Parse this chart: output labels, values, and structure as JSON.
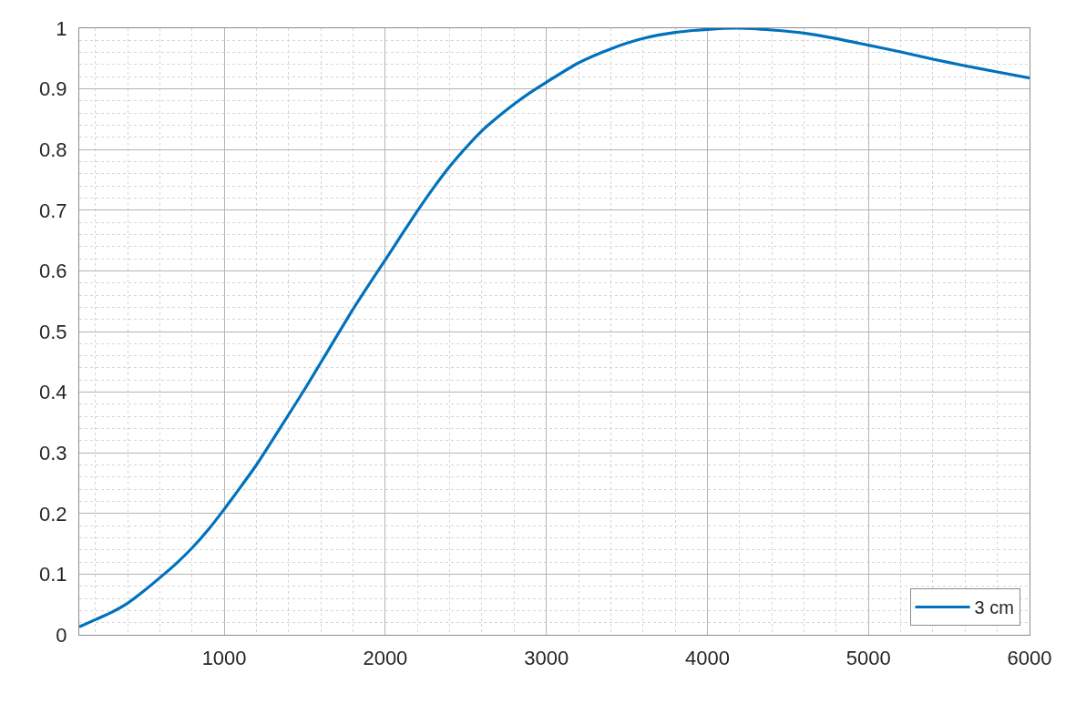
{
  "chart_data": {
    "type": "line",
    "x": [
      100,
      200,
      300,
      400,
      500,
      600,
      700,
      800,
      900,
      1000,
      1100,
      1200,
      1300,
      1400,
      1500,
      1600,
      1700,
      1800,
      1900,
      2000,
      2100,
      2200,
      2300,
      2400,
      2500,
      2600,
      2700,
      2800,
      2900,
      3000,
      3200,
      3400,
      3600,
      3800,
      4000,
      4200,
      4400,
      4600,
      4800,
      5000,
      5200,
      5400,
      5600,
      5800,
      6000
    ],
    "series": [
      {
        "name": "3 cm",
        "color": "#0072bd",
        "values": [
          0.013,
          0.025,
          0.037,
          0.052,
          0.072,
          0.094,
          0.117,
          0.143,
          0.173,
          0.207,
          0.243,
          0.28,
          0.321,
          0.363,
          0.405,
          0.449,
          0.493,
          0.537,
          0.578,
          0.618,
          0.659,
          0.699,
          0.737,
          0.772,
          0.803,
          0.831,
          0.854,
          0.875,
          0.894,
          0.911,
          0.943,
          0.966,
          0.983,
          0.993,
          0.998,
          1.0,
          0.997,
          0.992,
          0.983,
          0.972,
          0.961,
          0.949,
          0.938,
          0.928,
          0.918
        ]
      }
    ],
    "xlim": [
      100,
      6000
    ],
    "xticks": [
      1000,
      2000,
      3000,
      4000,
      5000,
      6000
    ],
    "ylim": [
      0,
      1
    ],
    "yticks": [
      0,
      0.1,
      0.2,
      0.3,
      0.4,
      0.5,
      0.6,
      0.7,
      0.8,
      0.9,
      1
    ],
    "grid": true,
    "legend": "bottom right",
    "marker": "none",
    "line_style": "solid"
  }
}
